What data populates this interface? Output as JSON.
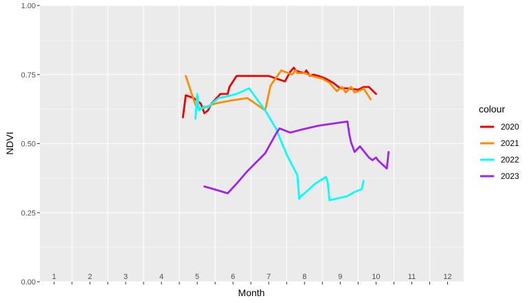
{
  "chart_data": {
    "type": "line",
    "xlabel": "Month",
    "ylabel": "NDVI",
    "xlim": [
      0.6,
      12.45
    ],
    "ylim": [
      0,
      1
    ],
    "x_ticks": [
      1,
      2,
      3,
      4,
      5,
      6,
      7,
      8,
      9,
      10,
      11,
      12
    ],
    "y_ticks": [
      0,
      0.25,
      0.5,
      0.75,
      1
    ],
    "y_tick_labels": [
      "0.00",
      "0.25",
      "0.50",
      "0.75",
      "1.00"
    ],
    "grid": true,
    "legend": {
      "title": "colour",
      "position": "right"
    },
    "series": [
      {
        "name": "2020",
        "color": "#ee0000",
        "x": [
          4.6,
          4.68,
          4.9,
          5.1,
          5.2,
          5.3,
          5.4,
          5.65,
          5.85,
          5.9,
          6.1,
          7.0,
          7.45,
          7.6,
          7.7,
          7.75,
          7.85,
          8.0,
          8.05,
          8.15,
          8.25,
          8.4,
          8.6,
          8.8,
          9.0,
          9.2,
          9.5,
          9.65,
          9.8,
          10.0
        ],
        "y": [
          0.595,
          0.675,
          0.665,
          0.645,
          0.61,
          0.62,
          0.645,
          0.68,
          0.68,
          0.705,
          0.745,
          0.745,
          0.725,
          0.76,
          0.775,
          0.765,
          0.76,
          0.755,
          0.765,
          0.745,
          0.75,
          0.745,
          0.735,
          0.72,
          0.7,
          0.7,
          0.695,
          0.705,
          0.705,
          0.68
        ]
      },
      {
        "name": "2021",
        "color": "#ff8c00",
        "x": [
          4.68,
          4.95,
          5.1,
          5.3,
          5.5,
          5.9,
          6.4,
          6.9,
          7.05,
          7.35,
          7.65,
          7.75,
          7.8,
          8.0,
          8.2,
          8.5,
          8.7,
          8.9,
          9.05,
          9.15,
          9.3,
          9.4,
          9.6,
          9.65,
          9.85
        ],
        "y": [
          0.745,
          0.64,
          0.625,
          0.635,
          0.645,
          0.655,
          0.665,
          0.62,
          0.71,
          0.765,
          0.75,
          0.765,
          0.755,
          0.755,
          0.745,
          0.735,
          0.72,
          0.69,
          0.705,
          0.685,
          0.705,
          0.685,
          0.695,
          0.7,
          0.66
        ]
      },
      {
        "name": "2022",
        "color": "#00ffff",
        "x": [
          4.95,
          5.0,
          5.05,
          5.2,
          5.3,
          5.45,
          5.6,
          5.8,
          6.1,
          6.45,
          6.9,
          7.2,
          7.5,
          7.8,
          7.85,
          7.9,
          8.0,
          8.3,
          8.6,
          8.65,
          8.7,
          9.2,
          9.4,
          9.6,
          9.65
        ],
        "y": [
          0.59,
          0.68,
          0.62,
          0.635,
          0.63,
          0.65,
          0.665,
          0.67,
          0.68,
          0.7,
          0.62,
          0.555,
          0.46,
          0.385,
          0.3,
          0.31,
          0.32,
          0.355,
          0.38,
          0.36,
          0.295,
          0.31,
          0.325,
          0.335,
          0.365
        ]
      },
      {
        "name": "2023",
        "color": "#a020f0",
        "x": [
          5.2,
          5.6,
          5.85,
          6.1,
          6.4,
          6.9,
          7.2,
          7.3,
          7.6,
          7.9,
          8.4,
          9.2,
          9.25,
          9.3,
          9.4,
          9.55,
          9.8,
          9.9,
          10.0,
          10.05,
          10.3,
          10.35
        ],
        "y": [
          0.345,
          0.33,
          0.32,
          0.355,
          0.4,
          0.465,
          0.535,
          0.555,
          0.54,
          0.55,
          0.565,
          0.58,
          0.535,
          0.505,
          0.47,
          0.49,
          0.45,
          0.44,
          0.45,
          0.44,
          0.41,
          0.47
        ]
      }
    ]
  }
}
